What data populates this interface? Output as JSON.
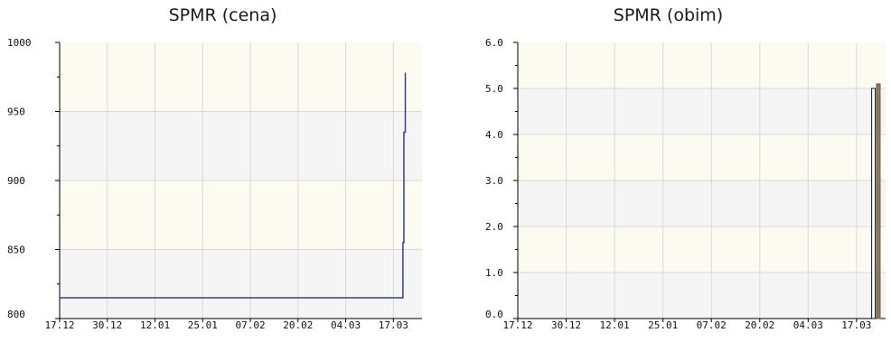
{
  "chart_data": [
    {
      "type": "line",
      "title": "SPMR (cena)",
      "xlabel": "",
      "ylabel": "",
      "x_tick_labels": [
        "17.12",
        "30.12",
        "12.01",
        "25.01",
        "07.02",
        "20.02",
        "04.03",
        "17.03"
      ],
      "y_tick_labels": [
        "800",
        "850",
        "900",
        "950",
        "1000"
      ],
      "ylim": [
        800,
        1000
      ],
      "x_range_index": [
        0,
        7.6
      ],
      "grid": true,
      "band_colors": [
        "#f5f5f5",
        "#fbfbf2"
      ],
      "series": [
        {
          "color": "#3b3b9a",
          "points": [
            {
              "x": 0.0,
              "y": 815
            },
            {
              "x": 7.18,
              "y": 815
            },
            {
              "x": 7.2,
              "y": 855
            },
            {
              "x": 7.22,
              "y": 935
            },
            {
              "x": 7.25,
              "y": 978
            }
          ]
        }
      ]
    },
    {
      "type": "bar",
      "title": "SPMR (obim)",
      "xlabel": "",
      "ylabel": "",
      "x_tick_labels": [
        "17.12",
        "30.12",
        "12.01",
        "25.01",
        "07.02",
        "20.02",
        "04.03",
        "17.03"
      ],
      "y_tick_labels": [
        "0.0",
        "1.0",
        "2.0",
        "3.0",
        "4.0",
        "5.0",
        "6.0"
      ],
      "ylim": [
        0,
        6
      ],
      "x_range_index": [
        0,
        7.6
      ],
      "grid": true,
      "band_colors": [
        "#f5f5f5",
        "#fbfbf2"
      ],
      "bars": [
        {
          "x": 7.35,
          "value": 5,
          "fill": "#ffffff",
          "stroke": "#111111"
        },
        {
          "x": 7.45,
          "value": 5.1,
          "fill": "#8a7a66",
          "stroke": "#6b5d4d"
        }
      ]
    }
  ]
}
